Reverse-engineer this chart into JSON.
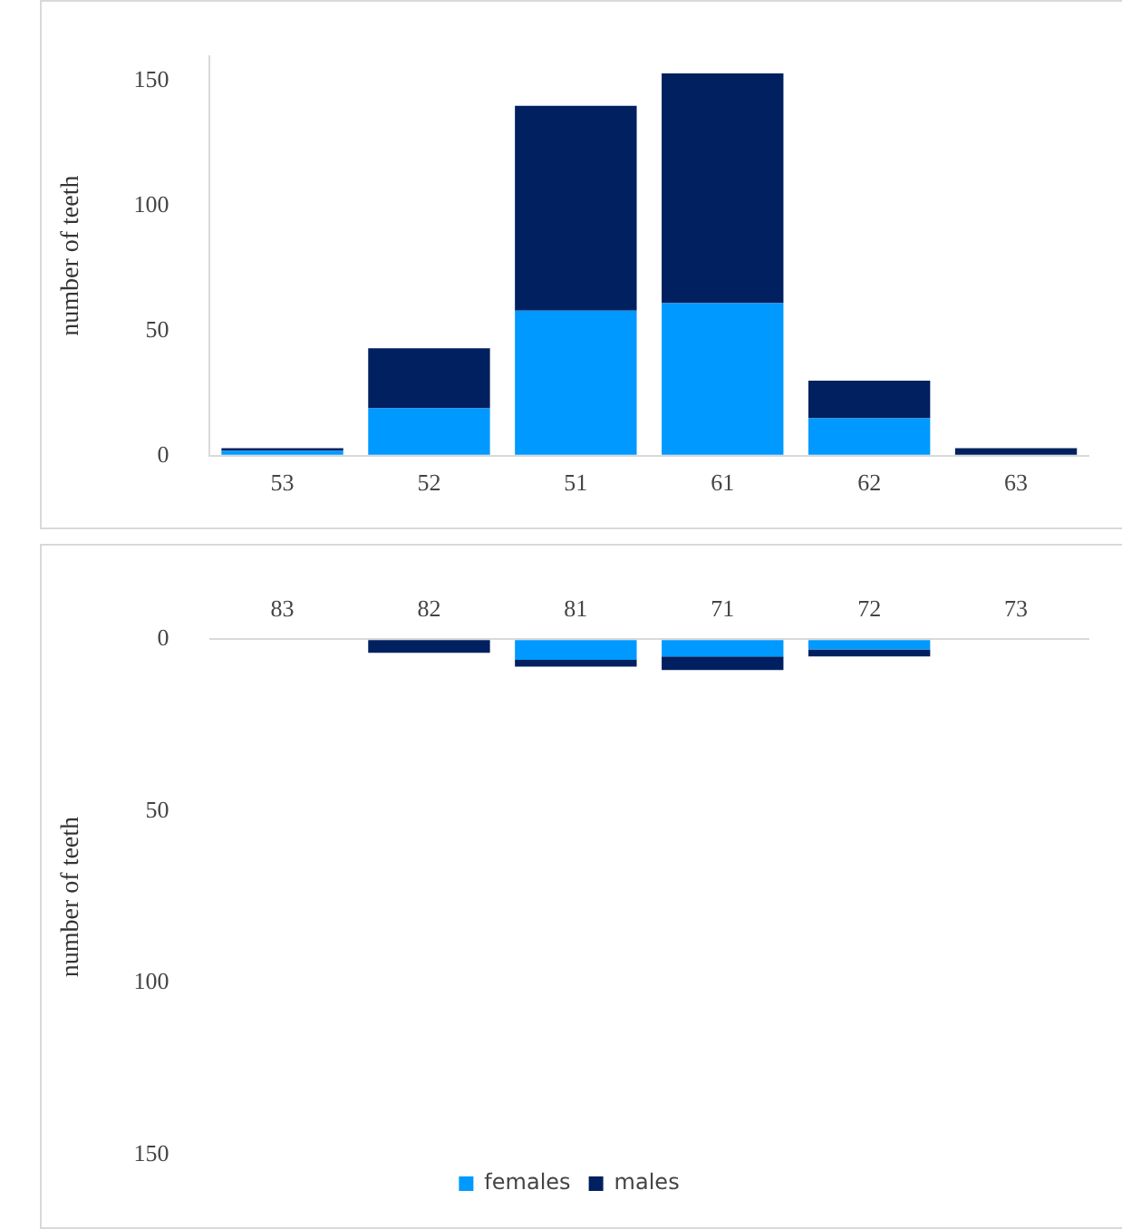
{
  "chart_data": [
    {
      "type": "bar",
      "stacked": true,
      "ylabel": "number of teeth",
      "categories": [
        "53",
        "52",
        "51",
        "61",
        "62",
        "63"
      ],
      "series": [
        {
          "color": "#0099ff",
          "values": [
            2,
            19,
            58,
            61,
            15,
            0
          ]
        },
        {
          "color": "#002060",
          "values": [
            1,
            24,
            82,
            92,
            15,
            3
          ]
        }
      ],
      "ylim": [
        0,
        160
      ],
      "yticks": [
        0,
        50,
        100,
        150
      ],
      "grid": false,
      "legend": false
    },
    {
      "type": "bar",
      "stacked": true,
      "ylabel": "number of teeth",
      "categories": [
        "83",
        "82",
        "81",
        "71",
        "72",
        "73"
      ],
      "series": [
        {
          "name": "females",
          "color": "#0099ff",
          "values": [
            0,
            0,
            6,
            5,
            3,
            0
          ]
        },
        {
          "name": "males",
          "color": "#002060",
          "values": [
            0,
            4,
            2,
            4,
            2,
            0
          ]
        }
      ],
      "ylim": [
        150,
        0
      ],
      "yticks": [
        0,
        50,
        100,
        150
      ],
      "grid": false,
      "legend": "bottom"
    }
  ]
}
